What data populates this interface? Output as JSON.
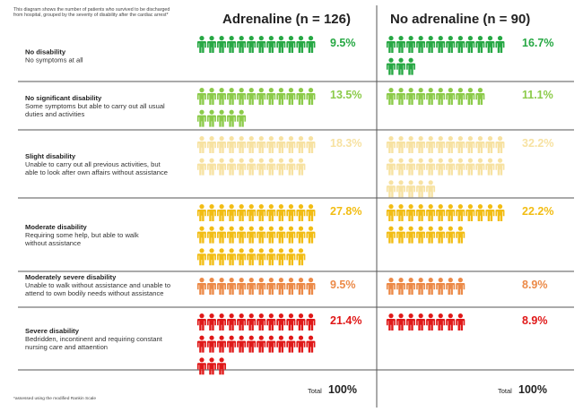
{
  "intro": "This diagram shows the number of patients who survived to be discharged from hospital, grouped by the severity of disability after the cardiac arrest*",
  "intro_lines": [
    "This diagram shows the number of patients who survived to be discharged",
    "from hospital, grouped by the severity of disability after the cardiac arrest*"
  ],
  "footnote": "*assessed using the modified Rankin Scale",
  "total_label": "Total",
  "total_value": "100%",
  "chart_data": {
    "type": "table",
    "columns": [
      {
        "title": "Adrenaline (n = 126)"
      },
      {
        "title": "No adrenaline (n = 90)"
      }
    ],
    "rows": [
      {
        "title": "No disability",
        "desc_lines": [
          "No symptoms at all"
        ],
        "color": "#27a844",
        "values": [
          "9.5%",
          "16.7%"
        ],
        "counts": [
          12,
          15
        ]
      },
      {
        "title": "No significant disability",
        "desc_lines": [
          "Some symptoms but able to carry out all usual",
          "duties and activities"
        ],
        "color": "#8ccb4a",
        "values": [
          "13.5%",
          "11.1%"
        ],
        "counts": [
          17,
          10
        ]
      },
      {
        "title": "Slight disability",
        "desc_lines": [
          "Unable to carry out all previous activities, but",
          "able to look after own affairs without assistance"
        ],
        "color": "#f7e2a2",
        "values": [
          "18.3%",
          "32.2%"
        ],
        "counts": [
          23,
          29
        ]
      },
      {
        "title": "Moderate disability",
        "desc_lines": [
          "Requiring some help, but able to walk",
          "without assistance"
        ],
        "color": "#f2bd14",
        "values": [
          "27.8%",
          "22.2%"
        ],
        "counts": [
          35,
          20
        ]
      },
      {
        "title": "Moderately severe disability",
        "desc_lines": [
          "Unable to walk without assistance and unable to",
          "attend to own bodily needs without assistance"
        ],
        "color": "#ec8a48",
        "values": [
          "9.5%",
          "8.9%"
        ],
        "counts": [
          12,
          8
        ]
      },
      {
        "title": "Severe disability",
        "desc_lines": [
          "Bedridden, incontinent and requiring constant",
          "nursing care and attaention"
        ],
        "color": "#e01818",
        "values": [
          "21.4%",
          "8.9%"
        ],
        "counts": [
          27,
          8
        ]
      }
    ]
  }
}
